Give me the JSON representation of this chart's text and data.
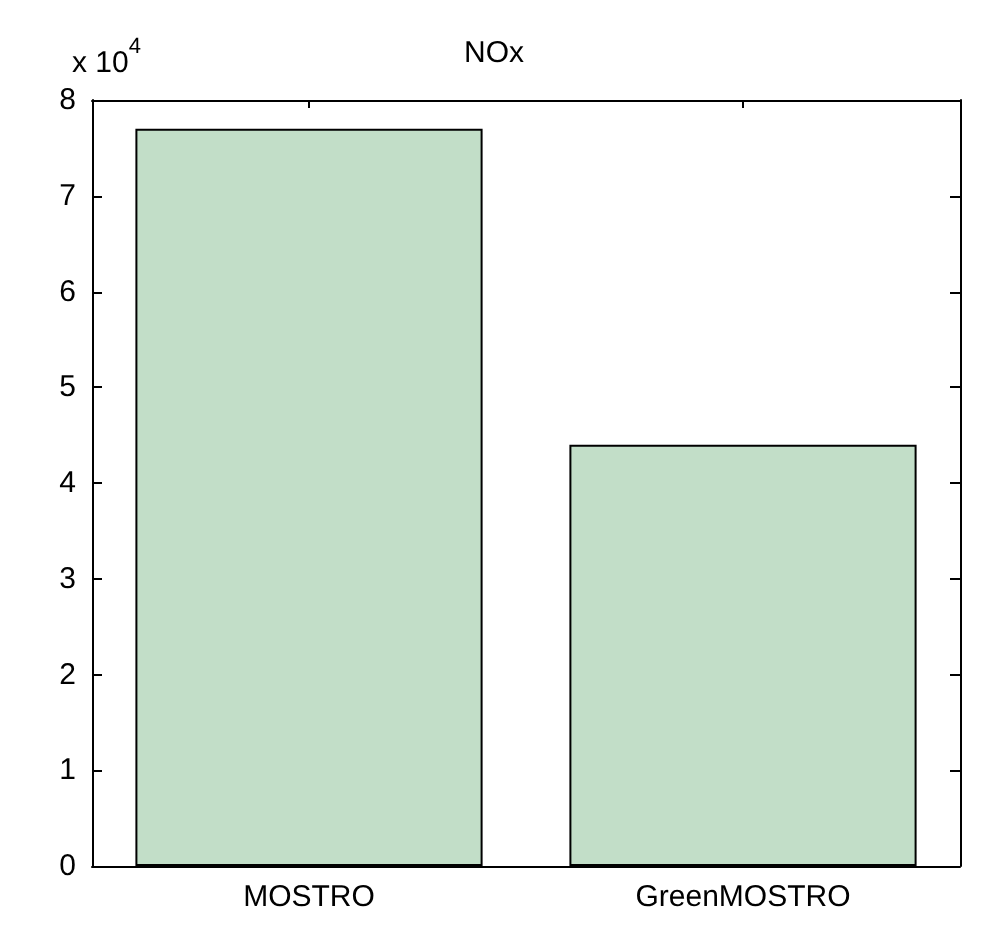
{
  "chart_data": {
    "type": "bar",
    "title": "NOx",
    "categories": [
      "MOSTRO",
      "GreenMOSTRO"
    ],
    "values": [
      7.7,
      4.4
    ],
    "color": "#c2dec8",
    "ylim": [
      0,
      8
    ],
    "yticks": [
      0,
      1,
      2,
      3,
      4,
      5,
      6,
      7,
      8
    ],
    "annotations": [
      "x 10$^{4}$"
    ],
    "grid": false
  }
}
